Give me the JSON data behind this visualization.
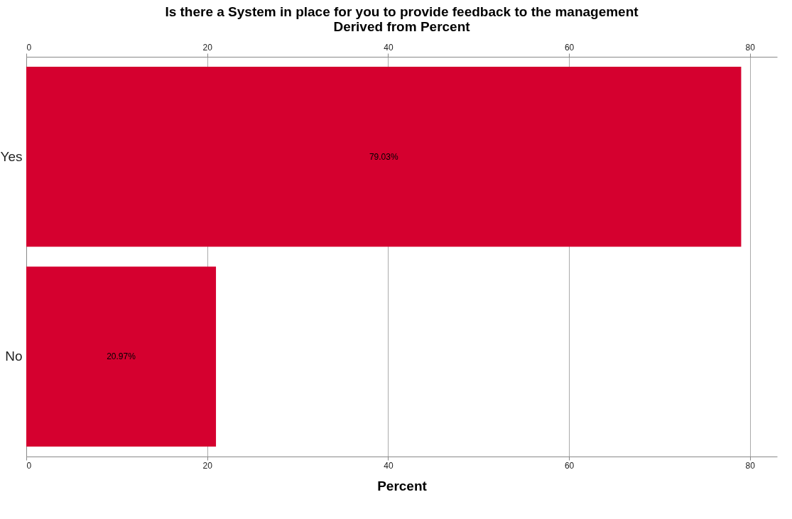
{
  "chart_data": {
    "type": "bar",
    "orientation": "horizontal",
    "title": "Is there a System in place for you to provide feedback to the management",
    "subtitle": "Derived from Percent",
    "xlabel": "Percent",
    "categories": [
      "Yes",
      "No"
    ],
    "values": [
      79.03,
      20.97
    ],
    "value_labels": [
      "79.03%",
      "20.97%"
    ],
    "color": "#d5002f",
    "xlim": [
      0,
      83
    ],
    "xticks": [
      0,
      20,
      40,
      60,
      80
    ],
    "x2lim": [
      0,
      83
    ],
    "x2ticks": [
      0,
      20,
      40,
      60,
      80
    ],
    "grid": "x"
  }
}
